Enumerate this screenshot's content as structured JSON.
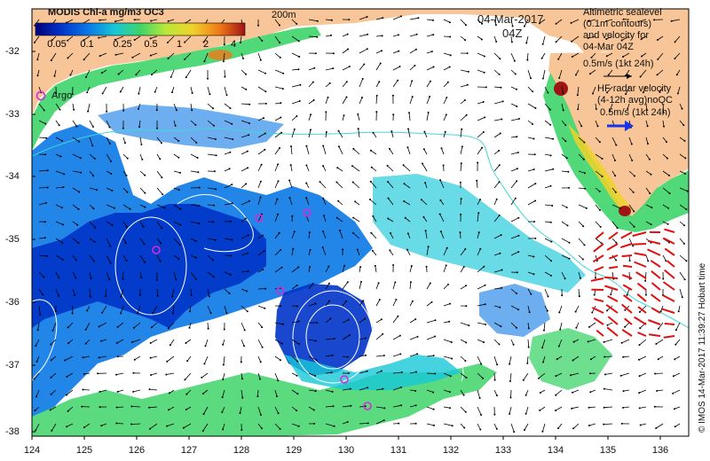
{
  "legend": {
    "title": "MODIS Chl-a mg/m3 OC3",
    "ticks": [
      "0.05",
      "0.1",
      "0.25",
      "0.5",
      "1",
      "2",
      "4"
    ],
    "colors": [
      "#00007a",
      "#0033c8",
      "#0a78e6",
      "#18c8d8",
      "#3ed46a",
      "#b8e83a",
      "#f0d22a",
      "#f07818",
      "#a01414"
    ]
  },
  "contour_label": "200m",
  "date": "04-Mar-2017",
  "time": "04Z",
  "altimetry_text": "Altimetric sealevel\n(0.1m contours)\nand velocity for\n04-Mar 04Z",
  "altimetry_scale": "0.5m/s (1kt 24h)",
  "hf_text": "HF radar velocity\n(4-12h avg)noQC",
  "hf_scale": "0.5m/s (1kt 24h)",
  "argo_label": "Argo",
  "credit": "© IMOS 14-Mar-2017 11:39:27 Hobart time",
  "lat_ticks": [
    "-32",
    "-33",
    "-34",
    "-35",
    "-36",
    "-37",
    "-38"
  ],
  "lon_ticks": [
    "124",
    "125",
    "126",
    "127",
    "128",
    "129",
    "130",
    "131",
    "132",
    "133",
    "134",
    "135",
    "136"
  ],
  "colors": {
    "land": "#f7c597",
    "sea_no_data": "#ffffff",
    "contour": "#41d8d8",
    "argo": "#d62ad6",
    "hf_arrows": "#e01010",
    "hf_scale_arrow": "#1436e8",
    "vectors": "#000000"
  }
}
